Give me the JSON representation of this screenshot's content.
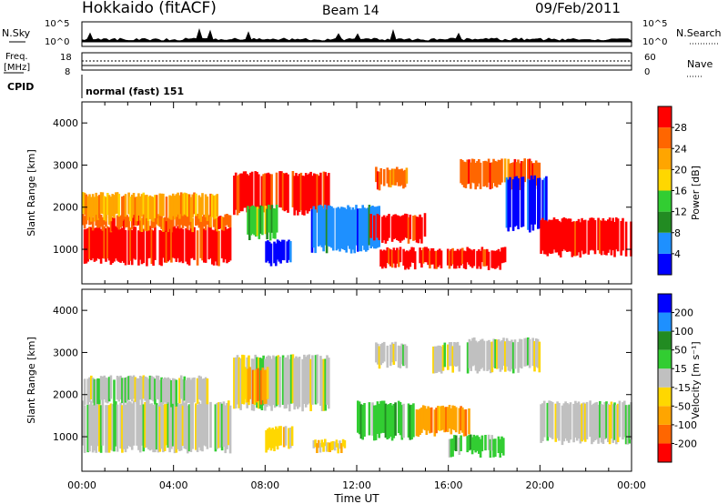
{
  "header": {
    "site": "Hokkaido (fitACF)",
    "beam": "Beam 14",
    "date": "09/Feb/2011"
  },
  "colors": {
    "power": [
      "#0000ff",
      "#1e90ff",
      "#228b22",
      "#32cd32",
      "#ffd700",
      "#ffa500",
      "#ff6600",
      "#ff0000"
    ],
    "velocity": [
      "#ff0000",
      "#ff6600",
      "#ffa500",
      "#ffd700",
      "#c0c0c0",
      "#32cd32",
      "#228b22",
      "#1e90ff",
      "#0000ff"
    ]
  },
  "chart_data": [
    {
      "type": "line",
      "name": "status",
      "x_range": [
        "00:00",
        "24:00"
      ],
      "sky": {
        "label": "N.Sky",
        "ticks": [
          "10^5",
          "10^0"
        ]
      },
      "search": {
        "label": "N.Search",
        "ticks": [
          "10^5",
          "10^0"
        ]
      },
      "freq": {
        "label": "Freq.",
        "unit": "[MHz]",
        "ticks": [
          18,
          8
        ]
      },
      "nave": {
        "label": "Nave",
        "ticks": [
          60,
          0
        ]
      },
      "cpid": {
        "label": "CPID",
        "text": "normal (fast) 151"
      }
    },
    {
      "type": "heatmap",
      "name": "power",
      "xlabel": "Time UT",
      "ylabel": "Slant Range [km]",
      "ylim": [
        180,
        4500
      ],
      "xlim": [
        0,
        24
      ],
      "x_ticks": [
        "00:00",
        "04:00",
        "08:00",
        "12:00",
        "16:00",
        "20:00",
        "00:00"
      ],
      "y_ticks": [
        1000,
        2000,
        3000,
        4000
      ],
      "colorbar": {
        "label": "Power [dB]",
        "ticks": [
          4,
          8,
          12,
          16,
          20,
          24,
          28
        ]
      },
      "regions": [
        {
          "t0": 0.0,
          "t1": 6.5,
          "r0": 700,
          "r1": 1500,
          "level": 7
        },
        {
          "t0": 0.0,
          "t1": 6.5,
          "r0": 1500,
          "r1": 1800,
          "level": 6
        },
        {
          "t0": 0.0,
          "t1": 6.0,
          "r0": 1750,
          "r1": 2300,
          "level": 5
        },
        {
          "t0": 6.6,
          "t1": 10.8,
          "r0": 1900,
          "r1": 2800,
          "level": 7
        },
        {
          "t0": 7.2,
          "t1": 8.6,
          "r0": 1300,
          "r1": 2000,
          "level": 3
        },
        {
          "t0": 8.0,
          "t1": 9.2,
          "r0": 700,
          "r1": 1200,
          "level": 0
        },
        {
          "t0": 10.0,
          "t1": 13.0,
          "r0": 1000,
          "r1": 2000,
          "level": 1
        },
        {
          "t0": 12.5,
          "t1": 15.0,
          "r0": 1200,
          "r1": 1800,
          "level": 7
        },
        {
          "t0": 13.0,
          "t1": 18.5,
          "r0": 600,
          "r1": 1000,
          "level": 7
        },
        {
          "t0": 12.8,
          "t1": 14.2,
          "r0": 2500,
          "r1": 2900,
          "level": 6
        },
        {
          "t0": 16.5,
          "t1": 20.0,
          "r0": 2500,
          "r1": 3100,
          "level": 6
        },
        {
          "t0": 18.5,
          "t1": 20.3,
          "r0": 1500,
          "r1": 2700,
          "level": 0
        },
        {
          "t0": 20.0,
          "t1": 24.0,
          "r0": 900,
          "r1": 1700,
          "level": 7
        }
      ]
    },
    {
      "type": "heatmap",
      "name": "velocity",
      "xlabel": "Time UT",
      "ylabel": "Slant Range [km]",
      "ylim": [
        180,
        4500
      ],
      "xlim": [
        0,
        24
      ],
      "x_ticks": [
        "00:00",
        "04:00",
        "08:00",
        "12:00",
        "16:00",
        "20:00",
        "00:00"
      ],
      "y_ticks": [
        1000,
        2000,
        3000,
        4000
      ],
      "colorbar": {
        "label": "Velocity [m s⁻¹]",
        "ticks": [
          200,
          100,
          50,
          15,
          -15,
          -50,
          -100,
          -200
        ]
      },
      "regions": [
        {
          "t0": 0.0,
          "t1": 6.5,
          "r0": 700,
          "r1": 1800,
          "level": 4
        },
        {
          "t0": 0.0,
          "t1": 5.5,
          "r0": 1800,
          "r1": 2400,
          "level": 4
        },
        {
          "t0": 6.6,
          "t1": 10.8,
          "r0": 1700,
          "r1": 2900,
          "level": 4
        },
        {
          "t0": 7.0,
          "t1": 8.2,
          "r0": 1800,
          "r1": 2600,
          "level": 2
        },
        {
          "t0": 8.0,
          "t1": 9.2,
          "r0": 700,
          "r1": 1200,
          "level": 3
        },
        {
          "t0": 10.0,
          "t1": 11.5,
          "r0": 700,
          "r1": 900,
          "level": 3
        },
        {
          "t0": 12.0,
          "t1": 14.5,
          "r0": 1000,
          "r1": 1800,
          "level": 5
        },
        {
          "t0": 14.5,
          "t1": 17.0,
          "r0": 1100,
          "r1": 1700,
          "level": 2
        },
        {
          "t0": 16.0,
          "t1": 18.5,
          "r0": 600,
          "r1": 1000,
          "level": 5
        },
        {
          "t0": 12.8,
          "t1": 14.2,
          "r0": 2700,
          "r1": 3200,
          "level": 4
        },
        {
          "t0": 15.3,
          "t1": 16.5,
          "r0": 2600,
          "r1": 3200,
          "level": 4
        },
        {
          "t0": 16.8,
          "t1": 20.0,
          "r0": 2600,
          "r1": 3300,
          "level": 4
        },
        {
          "t0": 20.0,
          "t1": 24.0,
          "r0": 900,
          "r1": 1800,
          "level": 4
        }
      ]
    }
  ]
}
